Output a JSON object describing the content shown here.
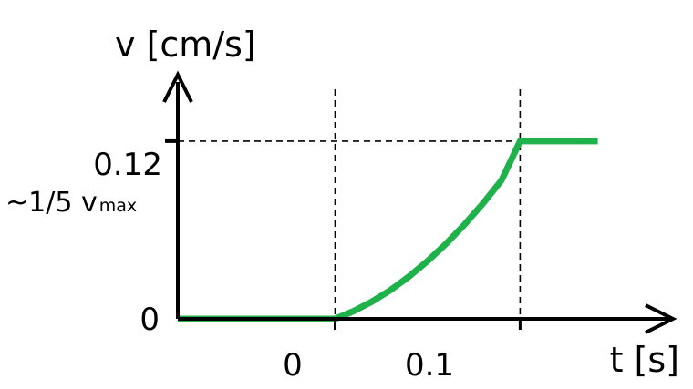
{
  "chart_data": {
    "type": "line",
    "xlabel": "t [s]",
    "ylabel": "v [cm/s]",
    "xlim": [
      -0.085,
      0.155
    ],
    "ylim": [
      0,
      0.155
    ],
    "x_ticks": [
      {
        "value": 0,
        "label": "0"
      },
      {
        "value": 0.1,
        "label": "0.1"
      }
    ],
    "y_ticks": [
      {
        "value": 0,
        "label": "0"
      },
      {
        "value": 0.12,
        "label": "0.12"
      }
    ],
    "annotation": {
      "prefix": "~1/5 v",
      "subscript": "max"
    },
    "reference_lines": {
      "vertical_x": [
        0,
        0.1
      ],
      "horizontal_y": [
        0.12
      ]
    },
    "grid": false,
    "legend": "none",
    "series": [
      {
        "color": "#1fb14a",
        "x": [
          -0.085,
          0,
          0.01,
          0.02,
          0.03,
          0.04,
          0.05,
          0.06,
          0.07,
          0.08,
          0.09,
          0.1,
          0.142
        ],
        "y": [
          0,
          0,
          0.0052,
          0.0117,
          0.0195,
          0.0286,
          0.039,
          0.0507,
          0.0637,
          0.078,
          0.0936,
          0.12,
          0.12
        ]
      }
    ]
  }
}
